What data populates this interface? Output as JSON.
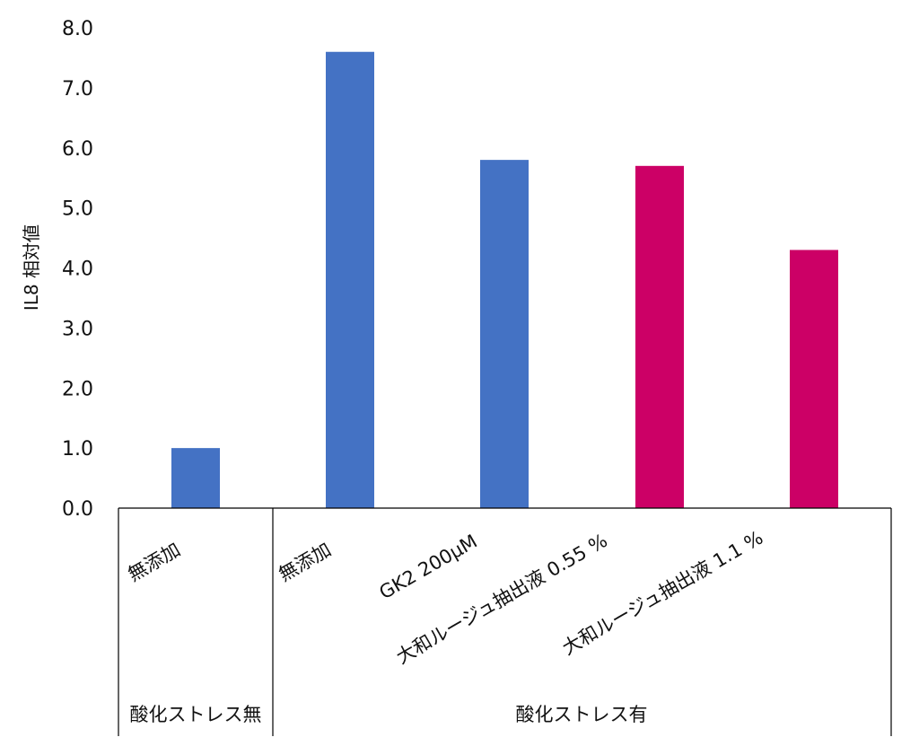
{
  "chart_data": {
    "type": "bar",
    "title": "",
    "ylabel": "IL8 相対値",
    "xlabel": "",
    "ylim": [
      0,
      8
    ],
    "yticks": [
      "0.0",
      "1.0",
      "2.0",
      "3.0",
      "4.0",
      "5.0",
      "6.0",
      "7.0",
      "8.0"
    ],
    "grid": false,
    "categories": [
      "無添加",
      "無添加",
      "GK2 200μM",
      "大和ルージュ抽出液 0.55 %",
      "大和ルージュ抽出液 1.1 %"
    ],
    "values": [
      1.0,
      7.6,
      5.8,
      5.7,
      4.3
    ],
    "bar_colors": [
      "#4472C4",
      "#4472C4",
      "#4472C4",
      "#CC0066",
      "#CC0066"
    ],
    "groups": [
      {
        "label": "酸化ストレス無",
        "count": 1
      },
      {
        "label": "酸化ストレス有",
        "count": 4
      }
    ]
  }
}
